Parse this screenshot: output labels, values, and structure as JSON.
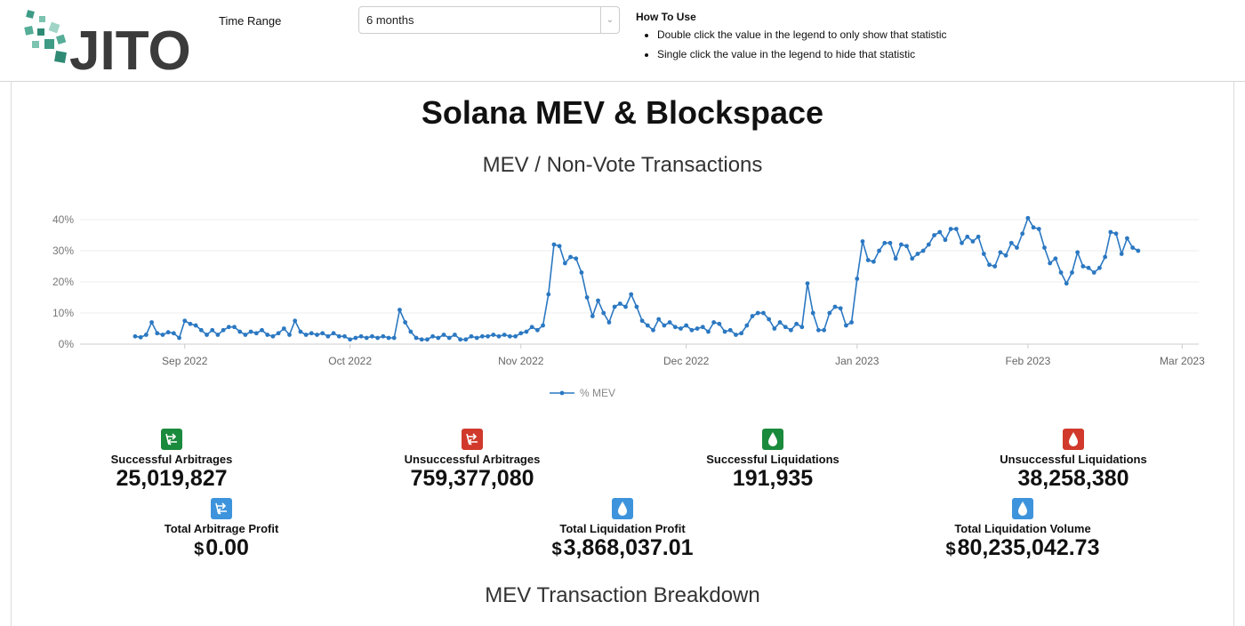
{
  "header": {
    "logo": "JITO",
    "time_range_label": "Time Range",
    "time_range_value": "6 months",
    "how_to_use_title": "How To Use",
    "instructions": [
      "Double click the value in the legend to only show that statistic",
      "Single click the value in the legend to hide that statistic"
    ]
  },
  "page_title": "Solana MEV & Blockspace",
  "chart_data": {
    "type": "line",
    "title": "MEV / Non-Vote Transactions",
    "x": [
      -9,
      -8,
      -7,
      -6,
      -5,
      -4,
      -3,
      -2,
      -1,
      0,
      1,
      2,
      3,
      4,
      5,
      6,
      7,
      8,
      9,
      10,
      11,
      12,
      13,
      14,
      15,
      16,
      17,
      18,
      19,
      20,
      21,
      22,
      23,
      24,
      25,
      26,
      27,
      28,
      29,
      30,
      31,
      32,
      33,
      34,
      35,
      36,
      37,
      38,
      39,
      40,
      41,
      42,
      43,
      44,
      45,
      46,
      47,
      48,
      49,
      50,
      51,
      52,
      53,
      54,
      55,
      56,
      57,
      58,
      59,
      60,
      61,
      62,
      63,
      64,
      65,
      66,
      67,
      68,
      69,
      70,
      71,
      72,
      73,
      74,
      75,
      76,
      77,
      78,
      79,
      80,
      81,
      82,
      83,
      84,
      85,
      86,
      87,
      88,
      89,
      90,
      91,
      92,
      93,
      94,
      95,
      96,
      97,
      98,
      99,
      100,
      101,
      102,
      103,
      104,
      105,
      106,
      107,
      108,
      109,
      110,
      111,
      112,
      113,
      114,
      115,
      116,
      117,
      118,
      119,
      120,
      121,
      122,
      123,
      124,
      125,
      126,
      127,
      128,
      129,
      130,
      131,
      132,
      133,
      134,
      135,
      136,
      137,
      138,
      139,
      140,
      141,
      142,
      143,
      144,
      145,
      146,
      147,
      148,
      149,
      150,
      151,
      152,
      153,
      154,
      155,
      156,
      157,
      158,
      159,
      160,
      161,
      162,
      163,
      164,
      165,
      166,
      167,
      168,
      169,
      170,
      171,
      172,
      173
    ],
    "series": [
      {
        "name": "% MEV",
        "color": "#2b78c2",
        "values": [
          2.5,
          2.2,
          3,
          7,
          3.5,
          3,
          3.8,
          3.5,
          2,
          7.5,
          6.5,
          6,
          4.5,
          3,
          4.5,
          3,
          4.5,
          5.5,
          5.5,
          4,
          3,
          4,
          3.5,
          4.5,
          3,
          2.5,
          3.5,
          5,
          3,
          7.5,
          4,
          3,
          3.5,
          3,
          3.5,
          2.5,
          3.5,
          2.5,
          2.5,
          1.5,
          2,
          2.5,
          2,
          2.5,
          2,
          2.5,
          2,
          2,
          11,
          7,
          4,
          2,
          1.5,
          1.5,
          2.5,
          2,
          3,
          2,
          3,
          1.5,
          1.5,
          2.5,
          2,
          2.5,
          2.5,
          3,
          2.5,
          3,
          2.5,
          2.5,
          3.5,
          4,
          5.5,
          4.5,
          6,
          16,
          32,
          31.5,
          26,
          28,
          27.5,
          23,
          15,
          9,
          14,
          10,
          7,
          12,
          13,
          12,
          16,
          12,
          7.5,
          6,
          4.5,
          8,
          6,
          7,
          5.5,
          5,
          6,
          4.5,
          5,
          5.5,
          4,
          7,
          6.5,
          4,
          4.5,
          3,
          3.5,
          6,
          9,
          10,
          10,
          8,
          5,
          7,
          5.5,
          4.5,
          6.5,
          5.5,
          19.5,
          10,
          4.5,
          4.5,
          10,
          12,
          11.5,
          6,
          7,
          21,
          33,
          27,
          26.5,
          30,
          32.5,
          32.5,
          27.5,
          32,
          31.5,
          27.5,
          29,
          30,
          32,
          35,
          36,
          33.5,
          37,
          37,
          32.5,
          34.5,
          33,
          34.5,
          29,
          25.5,
          25,
          29.5,
          28.5,
          32.5,
          31,
          35.5,
          40.5,
          37.5,
          37,
          31,
          26,
          27.5,
          23,
          19.5,
          23,
          29.5,
          25,
          24.5,
          23,
          24.5,
          28,
          36,
          35.5,
          29,
          34,
          31,
          30
        ]
      }
    ],
    "xlim": [
      -19,
      184
    ],
    "xticks": [
      {
        "value": 0,
        "label": "Sep 2022"
      },
      {
        "value": 30,
        "label": "Oct 2022"
      },
      {
        "value": 61,
        "label": "Nov 2022"
      },
      {
        "value": 91,
        "label": "Dec 2022"
      },
      {
        "value": 122,
        "label": "Jan 2023"
      },
      {
        "value": 153,
        "label": "Feb 2023"
      },
      {
        "value": 181,
        "label": "Mar 2023"
      }
    ],
    "ylim": [
      0,
      40
    ],
    "yticks": [
      {
        "value": 0,
        "label": "0%"
      },
      {
        "value": 10,
        "label": "10%"
      },
      {
        "value": 20,
        "label": "20%"
      },
      {
        "value": 30,
        "label": "30%"
      },
      {
        "value": 40,
        "label": "40%"
      }
    ],
    "grid": true
  },
  "stats": {
    "rows": [
      [
        {
          "label": "Successful Arbitrages",
          "value": "25,019,827"
        },
        {
          "label": "Unsuccessful Arbitrages",
          "value": "759,377,080"
        },
        {
          "label": "Successful Liquidations",
          "value": "191,935"
        },
        {
          "label": "Unsuccessful Liquidations",
          "value": "38,258,380"
        }
      ],
      [
        {
          "label": "Total Arbitrage Profit",
          "currency": "$",
          "value": "0.00"
        },
        {
          "label": "Total Liquidation Profit",
          "currency": "$",
          "value": "3,868,037.01"
        },
        {
          "label": "Total Liquidation Volume",
          "currency": "$",
          "value": "80,235,042.73"
        }
      ]
    ]
  },
  "section_title": "MEV Transaction Breakdown"
}
